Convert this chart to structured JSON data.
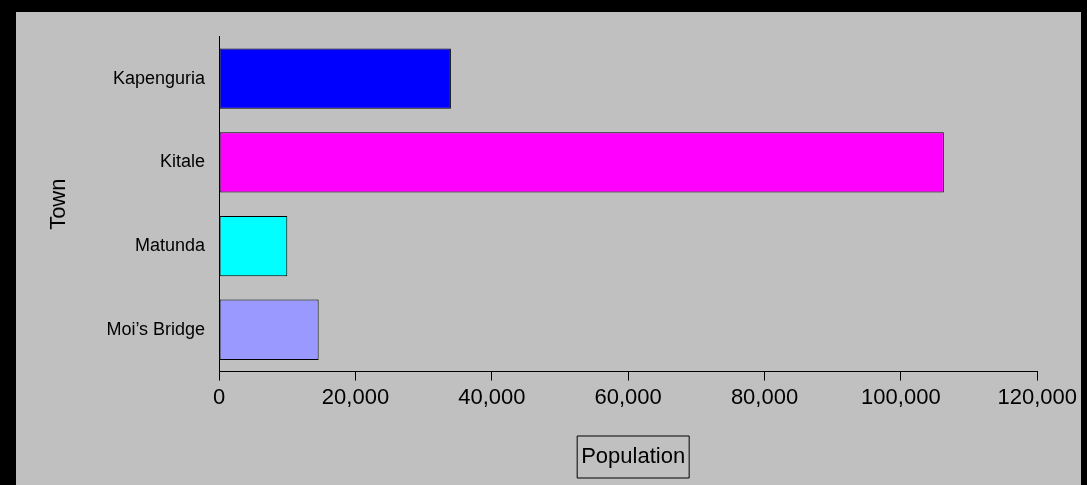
{
  "chart_data": {
    "type": "bar",
    "orientation": "horizontal",
    "xlabel": "Population",
    "ylabel": "Town",
    "categories": [
      "Kapenguria",
      "Kitale",
      "Matunda",
      "Moi’s Bridge"
    ],
    "values": [
      34000,
      106300,
      10000,
      14600
    ],
    "colors": [
      "#0000ff",
      "#ff00ff",
      "#00ffff",
      "#9999ff"
    ],
    "xlim": [
      0,
      120000
    ],
    "xticks": [
      0,
      {
        "value": 20000,
        "label": "20,000"
      },
      {
        "value": 40000,
        "label": "40,000"
      },
      {
        "value": 60000,
        "label": "60,000"
      },
      {
        "value": 80000,
        "label": "80,000"
      },
      {
        "value": 100000,
        "label": "100,000"
      },
      {
        "value": 120000,
        "label": "120,000"
      }
    ],
    "grid": false,
    "legend": false
  }
}
